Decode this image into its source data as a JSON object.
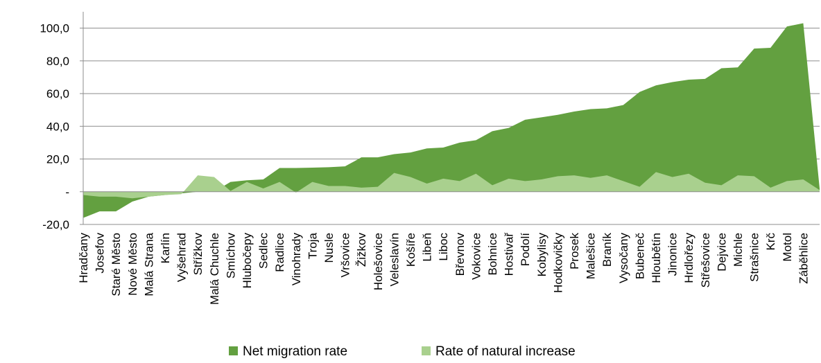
{
  "chart_data": {
    "type": "area",
    "categories": [
      "Hradčany",
      "Josefov",
      "Staré Město",
      "Nové Město",
      "Malá Strana",
      "Karlín",
      "Vyšehrad",
      "Střížkov",
      "Malá Chuchle",
      "Smíchov",
      "Hlubočepy",
      "Sedlec",
      "Radlice",
      "Vinohrady",
      "Troja",
      "Nusle",
      "Vršovice",
      "Žižkov",
      "Holešovice",
      "Veleslavín",
      "Košíře",
      "Libeň",
      "Liboc",
      "Břevnov",
      "Vokovice",
      "Bohnice",
      "Hostivař",
      "Podolí",
      "Kobylisy",
      "Hodkovičky",
      "Prosek",
      "Malešice",
      "Braník",
      "Vysočany",
      "Bubeneč",
      "Hloubětín",
      "Jinonice",
      "Hrdlořezy",
      "Střešovice",
      "Dejvice",
      "Michle",
      "Strašnice",
      "Krč",
      "Motol",
      "Záběhlice",
      null
    ],
    "series": [
      {
        "name": "Net migration rate",
        "color": "#63a040",
        "values": [
          -16,
          -12,
          -12,
          -6,
          -3,
          -2,
          -1,
          0,
          0,
          6,
          7,
          7.5,
          14.5,
          14.5,
          14.7,
          15,
          15.5,
          21,
          21,
          23,
          24,
          26.5,
          27,
          30,
          31.5,
          37,
          39,
          44,
          45.5,
          47,
          49,
          50.5,
          51,
          53,
          61,
          65,
          67,
          68.5,
          69,
          75.5,
          76,
          87.5,
          88,
          101,
          103,
          2
        ]
      },
      {
        "name": "Rate of natural increase",
        "color": "#a9d08e",
        "values": [
          -2,
          -3,
          -3,
          -4,
          -3,
          -2,
          -1.5,
          10,
          9,
          0.5,
          6,
          2,
          6,
          -0.5,
          6,
          3.5,
          3.5,
          2.5,
          3,
          11.5,
          9,
          5,
          8,
          6.5,
          11,
          4,
          8,
          6.5,
          7.5,
          9.5,
          10,
          8.5,
          10,
          6.5,
          3,
          12,
          9,
          11,
          5.5,
          4,
          10,
          9.5,
          2.5,
          6.5,
          7.5,
          1
        ]
      }
    ],
    "ylim": [
      -20,
      110
    ],
    "yticks": [
      {
        "value": -20,
        "label": "-20,0"
      },
      {
        "value": 0,
        "label": "-"
      },
      {
        "value": 20,
        "label": "20,0"
      },
      {
        "value": 40,
        "label": "40,0"
      },
      {
        "value": 60,
        "label": "60,0"
      },
      {
        "value": 80,
        "label": "80,0"
      },
      {
        "value": 100,
        "label": "100,0"
      }
    ],
    "grid": true
  }
}
